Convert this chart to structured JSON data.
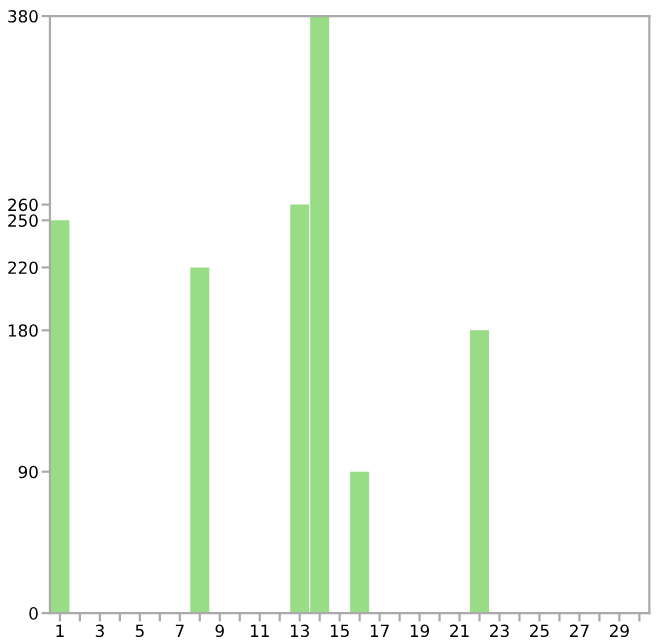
{
  "chart_data": {
    "type": "bar",
    "categories": [
      "1",
      null,
      "3",
      null,
      "5",
      null,
      "7",
      null,
      "9",
      null,
      "11",
      null,
      "13",
      null,
      "15",
      null,
      "17",
      null,
      "19",
      null,
      "21",
      null,
      "23",
      null,
      "25",
      null,
      "27",
      null,
      "29",
      null
    ],
    "values": [
      250,
      0,
      0,
      0,
      0,
      0,
      0,
      220,
      0,
      0,
      0,
      0,
      260,
      380,
      0,
      90,
      0,
      0,
      0,
      0,
      0,
      180,
      0,
      0,
      0,
      0,
      0,
      0,
      0,
      0
    ],
    "color": "#98dc85",
    "ylim": [
      0,
      380
    ],
    "yticks": [
      0,
      90,
      180,
      220,
      250,
      260,
      380
    ],
    "grid": false
  }
}
